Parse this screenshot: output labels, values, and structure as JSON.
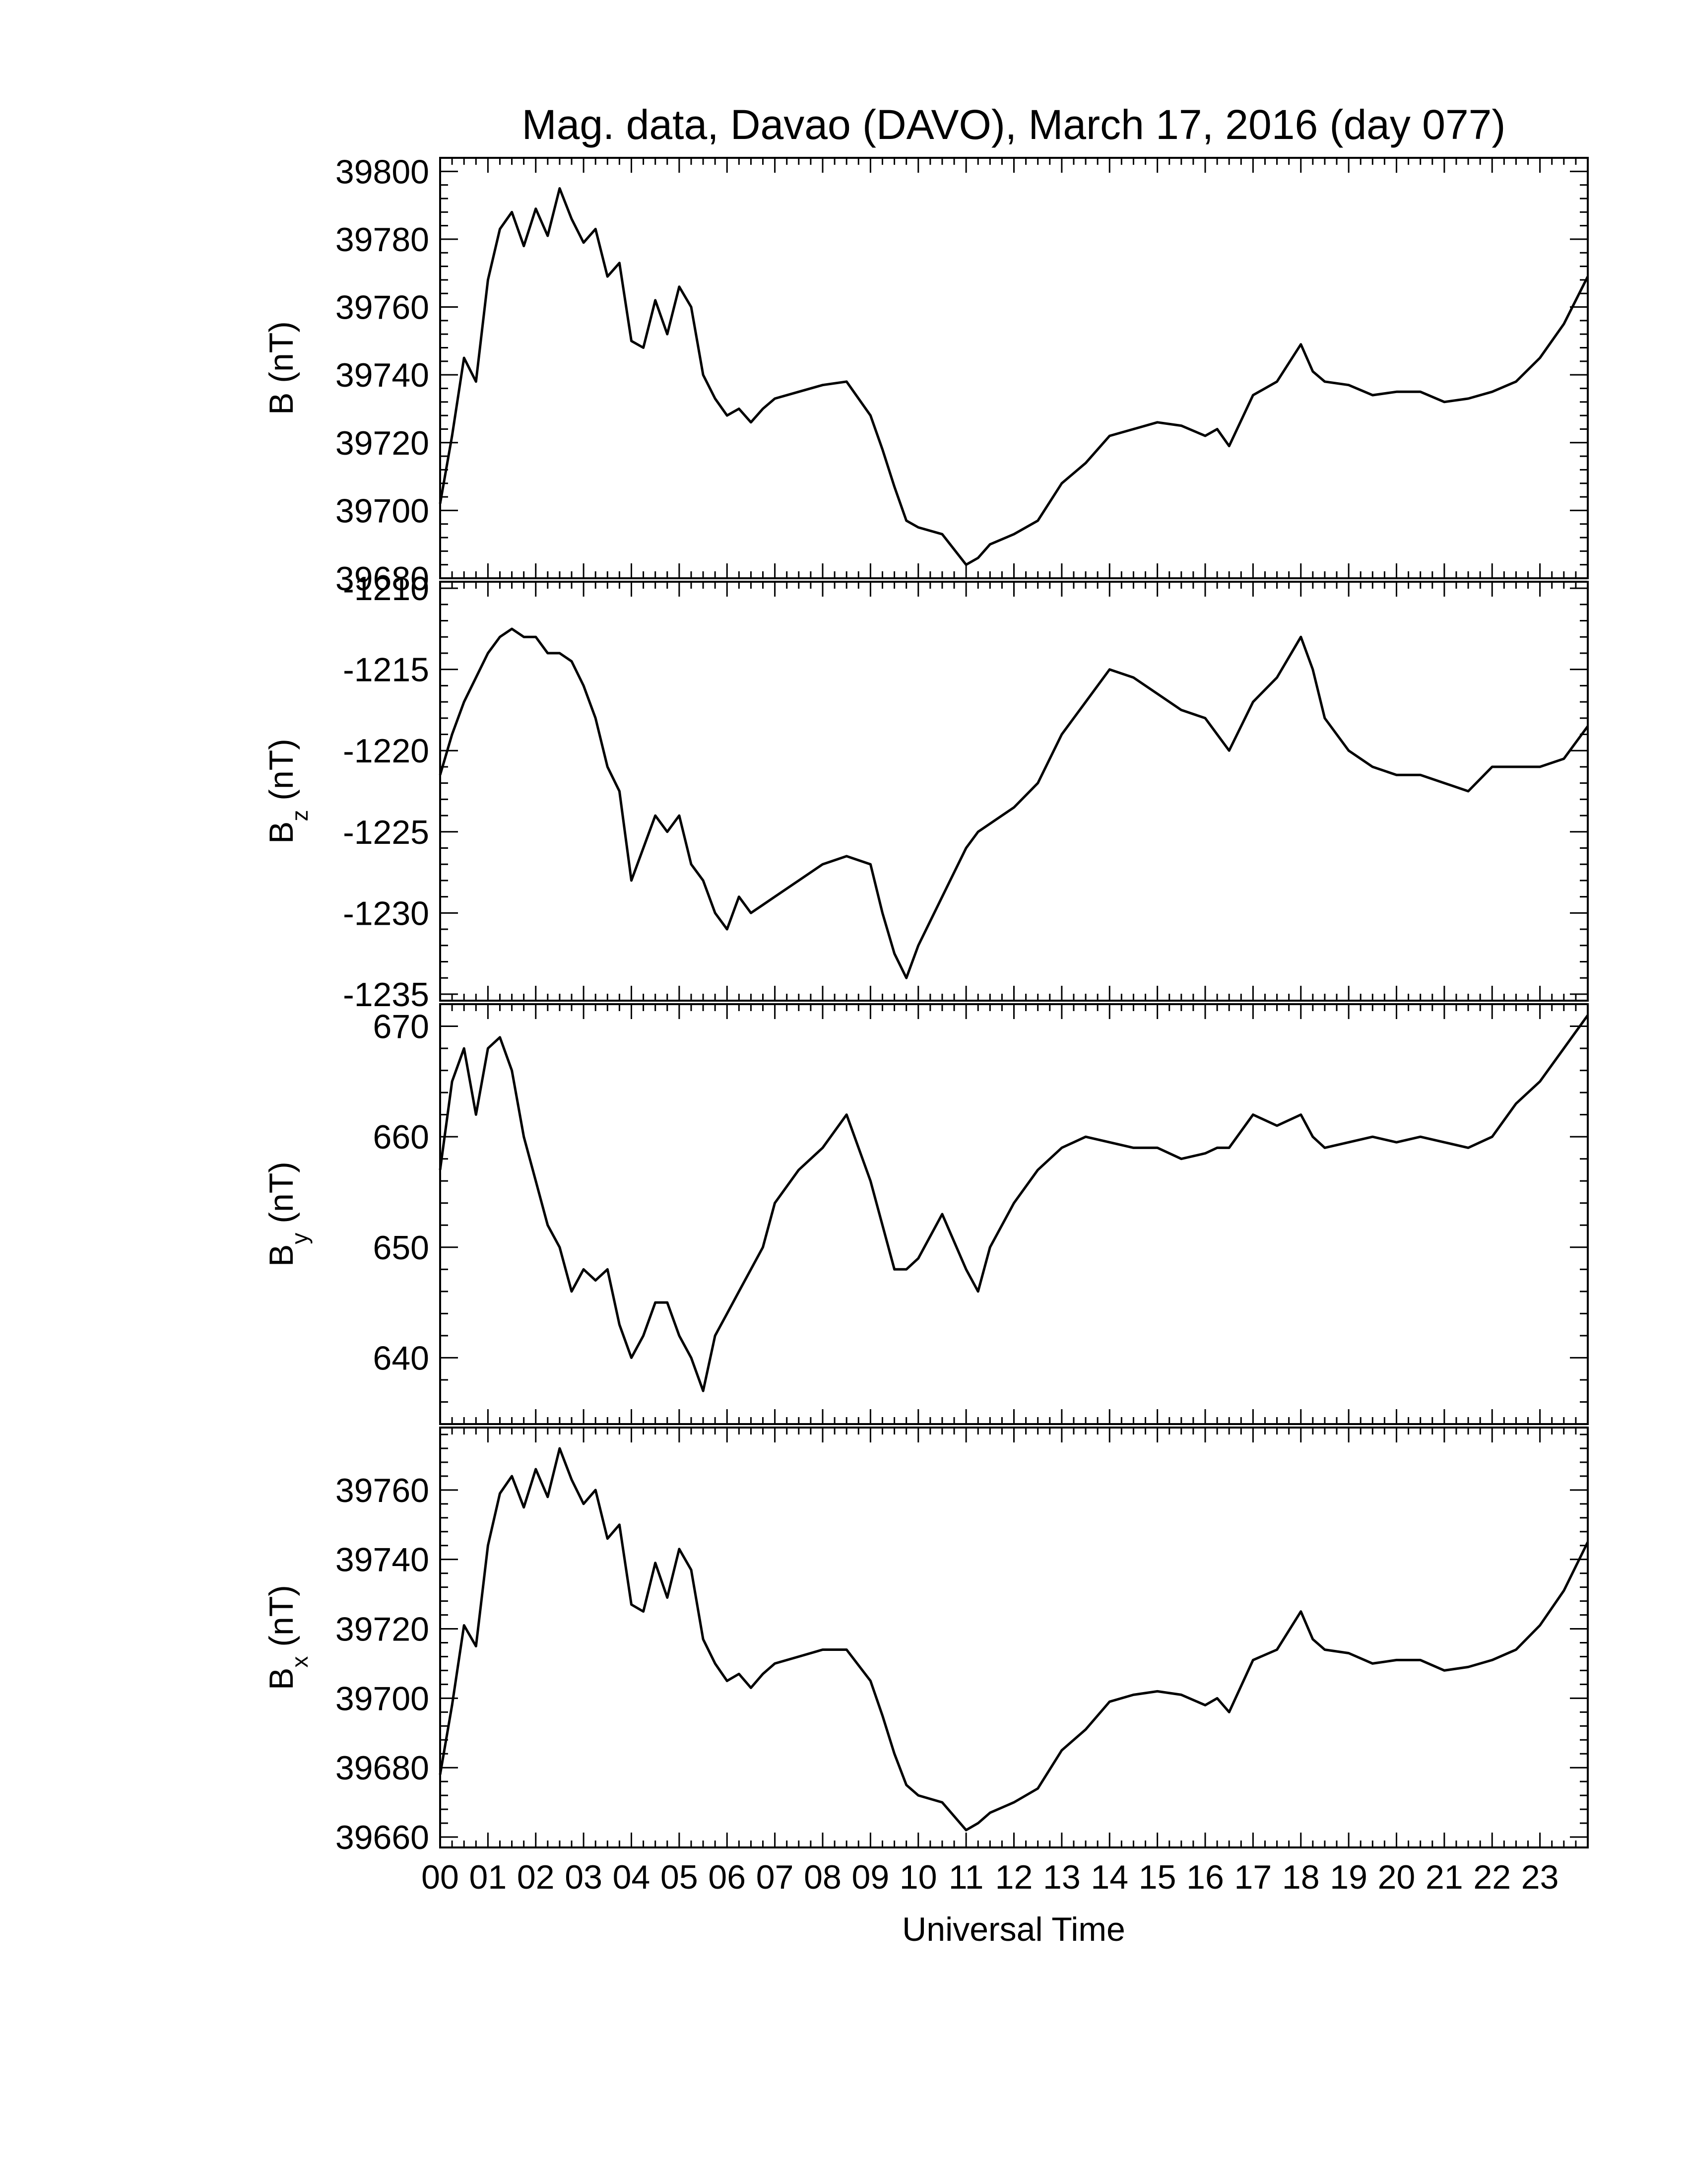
{
  "title": "Mag. data, Davao (DAVO), March 17, 2016 (day 077)",
  "xlabel": "Universal Time",
  "x_tick_labels": [
    "00",
    "01",
    "02",
    "03",
    "04",
    "05",
    "06",
    "07",
    "08",
    "09",
    "10",
    "11",
    "12",
    "13",
    "14",
    "15",
    "16",
    "17",
    "18",
    "19",
    "20",
    "21",
    "22",
    "23"
  ],
  "chart_data": [
    {
      "type": "line",
      "ylabel": "B (nT)",
      "ylabel_main": "B",
      "ylabel_sub": "",
      "ylabel_unit": " (nT)",
      "xlim": [
        0,
        24
      ],
      "ylim": [
        39680,
        39804
      ],
      "yticks": [
        39680,
        39700,
        39720,
        39740,
        39760,
        39780,
        39800
      ],
      "x": [
        0,
        0.25,
        0.5,
        0.75,
        1,
        1.25,
        1.5,
        1.75,
        2,
        2.25,
        2.5,
        2.75,
        3,
        3.25,
        3.5,
        3.75,
        4,
        4.25,
        4.5,
        4.75,
        5,
        5.25,
        5.5,
        5.75,
        6,
        6.25,
        6.5,
        6.75,
        7,
        7.5,
        8,
        8.5,
        9,
        9.25,
        9.5,
        9.75,
        10,
        10.5,
        11,
        11.25,
        11.5,
        12,
        12.5,
        13,
        13.5,
        14,
        14.5,
        15,
        15.5,
        16,
        16.25,
        16.5,
        17,
        17.5,
        18,
        18.25,
        18.5,
        19,
        19.5,
        20,
        20.5,
        21,
        21.5,
        22,
        22.5,
        23,
        23.5,
        24
      ],
      "y": [
        39702,
        39722,
        39745,
        39738,
        39768,
        39783,
        39788,
        39778,
        39789,
        39781,
        39795,
        39786,
        39779,
        39783,
        39769,
        39773,
        39750,
        39748,
        39762,
        39752,
        39766,
        39760,
        39740,
        39733,
        39728,
        39730,
        39726,
        39730,
        39733,
        39735,
        39737,
        39738,
        39728,
        39718,
        39707,
        39697,
        39695,
        39693,
        39684,
        39686,
        39690,
        39693,
        39697,
        39708,
        39714,
        39722,
        39724,
        39726,
        39725,
        39722,
        39724,
        39719,
        39734,
        39738,
        39749,
        39741,
        39738,
        39737,
        39734,
        39735,
        39735,
        39732,
        39733,
        39735,
        39738,
        39745,
        39755,
        39769
      ]
    },
    {
      "type": "line",
      "ylabel": "Bz (nT)",
      "ylabel_main": "B",
      "ylabel_sub": "z",
      "ylabel_unit": " (nT)",
      "xlim": [
        0,
        24
      ],
      "ylim": [
        -1235.4,
        -1209.6
      ],
      "yticks": [
        -1235,
        -1230,
        -1225,
        -1220,
        -1215,
        -1210
      ],
      "x": [
        0,
        0.25,
        0.5,
        0.75,
        1,
        1.25,
        1.5,
        1.75,
        2,
        2.25,
        2.5,
        2.75,
        3,
        3.25,
        3.5,
        3.75,
        4,
        4.25,
        4.5,
        4.75,
        5,
        5.25,
        5.5,
        5.75,
        6,
        6.25,
        6.5,
        6.75,
        7,
        7.5,
        8,
        8.5,
        9,
        9.25,
        9.5,
        9.75,
        10,
        10.5,
        11,
        11.25,
        11.5,
        12,
        12.5,
        13,
        13.5,
        14,
        14.5,
        15,
        15.5,
        16,
        16.25,
        16.5,
        17,
        17.5,
        18,
        18.25,
        18.5,
        19,
        19.5,
        20,
        20.5,
        21,
        21.5,
        22,
        22.5,
        23,
        23.5,
        24
      ],
      "y": [
        -1221.5,
        -1219,
        -1217,
        -1215.5,
        -1214,
        -1213,
        -1212.5,
        -1213,
        -1213,
        -1214,
        -1214,
        -1214.5,
        -1216,
        -1218,
        -1221,
        -1222.5,
        -1228,
        -1226,
        -1224,
        -1225,
        -1224,
        -1227,
        -1228,
        -1230,
        -1231,
        -1229,
        -1230,
        -1229.5,
        -1229,
        -1228,
        -1227,
        -1226.5,
        -1227,
        -1230,
        -1232.5,
        -1234,
        -1232,
        -1229,
        -1226,
        -1225,
        -1224.5,
        -1223.5,
        -1222,
        -1219,
        -1217,
        -1215,
        -1215.5,
        -1216.5,
        -1217.5,
        -1218,
        -1219,
        -1220,
        -1217,
        -1215.5,
        -1213,
        -1215,
        -1218,
        -1220,
        -1221,
        -1221.5,
        -1221.5,
        -1222,
        -1222.5,
        -1221,
        -1221,
        -1221,
        -1220.5,
        -1218.5
      ]
    },
    {
      "type": "line",
      "ylabel": "By (nT)",
      "ylabel_main": "B",
      "ylabel_sub": "y",
      "ylabel_unit": " (nT)",
      "xlim": [
        0,
        24
      ],
      "ylim": [
        634,
        672
      ],
      "yticks": [
        640,
        650,
        660,
        670
      ],
      "x": [
        0,
        0.25,
        0.5,
        0.75,
        1,
        1.25,
        1.5,
        1.75,
        2,
        2.25,
        2.5,
        2.75,
        3,
        3.25,
        3.5,
        3.75,
        4,
        4.25,
        4.5,
        4.75,
        5,
        5.25,
        5.5,
        5.75,
        6,
        6.25,
        6.5,
        6.75,
        7,
        7.5,
        8,
        8.5,
        9,
        9.25,
        9.5,
        9.75,
        10,
        10.5,
        11,
        11.25,
        11.5,
        12,
        12.5,
        13,
        13.5,
        14,
        14.5,
        15,
        15.5,
        16,
        16.25,
        16.5,
        17,
        17.5,
        18,
        18.25,
        18.5,
        19,
        19.5,
        20,
        20.5,
        21,
        21.5,
        22,
        22.5,
        23,
        23.5,
        24
      ],
      "y": [
        657,
        665,
        668,
        662,
        668,
        669,
        666,
        660,
        656,
        652,
        650,
        646,
        648,
        647,
        648,
        643,
        640,
        642,
        645,
        645,
        642,
        640,
        637,
        642,
        644,
        646,
        648,
        650,
        654,
        657,
        659,
        662,
        656,
        652,
        648,
        648,
        649,
        653,
        648,
        646,
        650,
        654,
        657,
        659,
        660,
        659.5,
        659,
        659,
        658,
        658.5,
        659,
        659,
        662,
        661,
        662,
        660,
        659,
        659.5,
        660,
        659.5,
        660,
        659.5,
        659,
        660,
        663,
        665,
        668,
        671
      ]
    },
    {
      "type": "line",
      "ylabel": "Bx (nT)",
      "ylabel_main": "B",
      "ylabel_sub": "x",
      "ylabel_unit": " (nT)",
      "xlim": [
        0,
        24
      ],
      "ylim": [
        39657,
        39778
      ],
      "yticks": [
        39660,
        39680,
        39700,
        39720,
        39740,
        39760
      ],
      "x": [
        0,
        0.25,
        0.5,
        0.75,
        1,
        1.25,
        1.5,
        1.75,
        2,
        2.25,
        2.5,
        2.75,
        3,
        3.25,
        3.5,
        3.75,
        4,
        4.25,
        4.5,
        4.75,
        5,
        5.25,
        5.5,
        5.75,
        6,
        6.25,
        6.5,
        6.75,
        7,
        7.5,
        8,
        8.5,
        9,
        9.25,
        9.5,
        9.75,
        10,
        10.5,
        11,
        11.25,
        11.5,
        12,
        12.5,
        13,
        13.5,
        14,
        14.5,
        15,
        15.5,
        16,
        16.25,
        16.5,
        17,
        17.5,
        18,
        18.25,
        18.5,
        19,
        19.5,
        20,
        20.5,
        21,
        21.5,
        22,
        22.5,
        23,
        23.5,
        24
      ],
      "y": [
        39678,
        39698,
        39721,
        39715,
        39744,
        39759,
        39764,
        39755,
        39766,
        39758,
        39772,
        39763,
        39756,
        39760,
        39746,
        39750,
        39727,
        39725,
        39739,
        39729,
        39743,
        39737,
        39717,
        39710,
        39705,
        39707,
        39703,
        39707,
        39710,
        39712,
        39714,
        39714,
        39705,
        39695,
        39684,
        39675,
        39672,
        39670,
        39662,
        39664,
        39667,
        39670,
        39674,
        39685,
        39691,
        39699,
        39701,
        39702,
        39701,
        39698,
        39700,
        39696,
        39711,
        39714,
        39725,
        39717,
        39714,
        39713,
        39710,
        39711,
        39711,
        39708,
        39709,
        39711,
        39714,
        39721,
        39731,
        39745
      ]
    }
  ]
}
